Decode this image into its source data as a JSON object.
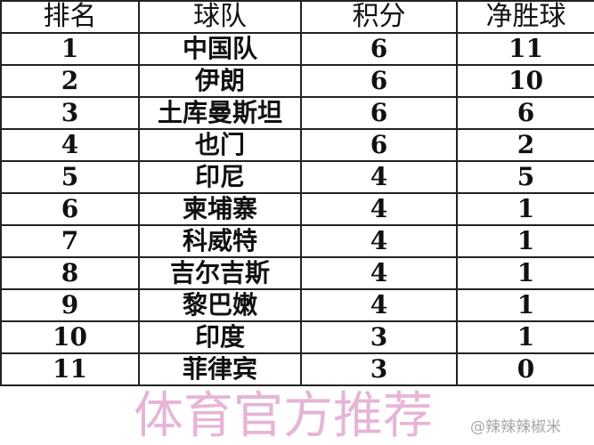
{
  "headers": [
    "排名",
    "球队",
    "积分",
    "净胜球"
  ],
  "rows": [
    [
      "1",
      "中国队",
      "6",
      "11"
    ],
    [
      "2",
      "伊朗",
      "6",
      "10"
    ],
    [
      "3",
      "土库曼斯坦",
      "6",
      "6"
    ],
    [
      "4",
      "也门",
      "6",
      "2"
    ],
    [
      "5",
      "印尼",
      "4",
      "5"
    ],
    [
      "6",
      "柬埔寨",
      "4",
      "1"
    ],
    [
      "7",
      "科威特",
      "4",
      "1"
    ],
    [
      "8",
      "吉尔吉斯",
      "4",
      "1"
    ],
    [
      "9",
      "黎巴嫩",
      "4",
      "1"
    ],
    [
      "10",
      "印度",
      "3",
      "1"
    ],
    [
      "11",
      "菲律宾",
      "3",
      "0"
    ]
  ],
  "watermark": "体育官方推荐",
  "source_tag": "@辣辣辣椒米"
}
